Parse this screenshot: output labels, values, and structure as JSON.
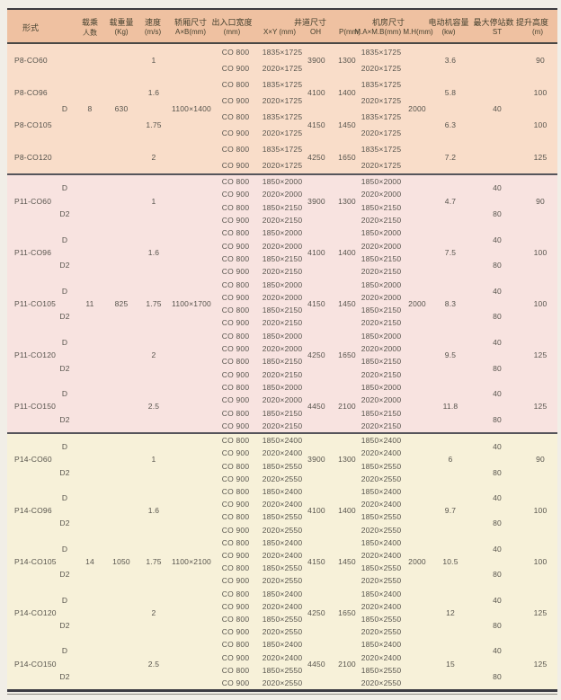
{
  "colors": {
    "header_bg": "#efc1a1",
    "section_P8_bg": "#f9ddc9",
    "section_P11_bg": "#f8e3e0",
    "section_P14_bg": "#f7f1d9",
    "rule": "#4a4845",
    "text": "#57544d"
  },
  "header": {
    "col_model": "形式",
    "col_persons_1": "载乘",
    "col_persons_2": "人数",
    "col_weight_1": "载重量",
    "col_weight_2": "(Kg)",
    "col_speed_1": "速度",
    "col_speed_2": "(m/s)",
    "col_cab_1": "轿厢尺寸",
    "col_cab_2": "A×B(mm)",
    "col_door_1": "出入口宽度",
    "col_door_2": "(mm)",
    "grp_shaft": "井道尺寸",
    "col_xy": "X×Y (mm)",
    "col_oh": "OH",
    "col_p": "P(mm)",
    "grp_machine": "机房尺寸",
    "col_mab_mh": "M.A×M.B(mm) M.H(mm)",
    "col_motor_1": "电动机容量",
    "col_motor_2": "(kw)",
    "col_st_1": "最大停站数",
    "col_st_2": "ST",
    "col_height_1": "提升高度",
    "col_height_2": "(m)"
  },
  "sections": [
    {
      "name": "P8",
      "bg_key": "section_P8_bg",
      "persons": "8",
      "weight": "630",
      "cab_size": "1100×1400",
      "machine_height": "2000",
      "shared_variant": "D",
      "shared_stops": "40",
      "models": [
        {
          "name": "P8-CO60",
          "speed": "1",
          "oh": "3900",
          "pit": "1300",
          "motor_kw": "3.6",
          "travel_m": "90",
          "variants": [
            {
              "label": "",
              "stops": "",
              "rows": [
                {
                  "door": "CO 800",
                  "shaft": "1835×1725",
                  "machine": "1835×1725"
                },
                {
                  "door": "CO 900",
                  "shaft": "2020×1725",
                  "machine": "2020×1725"
                }
              ]
            }
          ]
        },
        {
          "name": "P8-CO96",
          "speed": "1.6",
          "oh": "4100",
          "pit": "1400",
          "motor_kw": "5.8",
          "travel_m": "100",
          "variants": [
            {
              "label": "",
              "stops": "",
              "rows": [
                {
                  "door": "CO 800",
                  "shaft": "1835×1725",
                  "machine": "1835×1725"
                },
                {
                  "door": "CO 900",
                  "shaft": "2020×1725",
                  "machine": "2020×1725"
                }
              ]
            }
          ]
        },
        {
          "name": "P8-CO105",
          "speed": "1.75",
          "oh": "4150",
          "pit": "1450",
          "motor_kw": "6.3",
          "travel_m": "100",
          "variants": [
            {
              "label": "",
              "stops": "",
              "rows": [
                {
                  "door": "CO 800",
                  "shaft": "1835×1725",
                  "machine": "1835×1725"
                },
                {
                  "door": "CO 900",
                  "shaft": "2020×1725",
                  "machine": "2020×1725"
                }
              ]
            }
          ]
        },
        {
          "name": "P8-CO120",
          "speed": "2",
          "oh": "4250",
          "pit": "1650",
          "motor_kw": "7.2",
          "travel_m": "125",
          "variants": [
            {
              "label": "",
              "stops": "",
              "rows": [
                {
                  "door": "CO 800",
                  "shaft": "1835×1725",
                  "machine": "1835×1725"
                },
                {
                  "door": "CO 900",
                  "shaft": "2020×1725",
                  "machine": "2020×1725"
                }
              ]
            }
          ]
        }
      ]
    },
    {
      "name": "P11",
      "bg_key": "section_P11_bg",
      "persons": "11",
      "weight": "825",
      "cab_size": "1100×1700",
      "machine_height": "2000",
      "shared_variant": "",
      "shared_stops": "",
      "models": [
        {
          "name": "P11-CO60",
          "speed": "1",
          "oh": "3900",
          "pit": "1300",
          "motor_kw": "4.7",
          "travel_m": "90",
          "variants": [
            {
              "label": "D",
              "stops": "40",
              "rows": [
                {
                  "door": "CO 800",
                  "shaft": "1850×2000",
                  "machine": "1850×2000"
                },
                {
                  "door": "CO 900",
                  "shaft": "2020×2000",
                  "machine": "2020×2000"
                }
              ]
            },
            {
              "label": "D2",
              "stops": "80",
              "rows": [
                {
                  "door": "CO 800",
                  "shaft": "1850×2150",
                  "machine": "1850×2150"
                },
                {
                  "door": "CO 900",
                  "shaft": "2020×2150",
                  "machine": "2020×2150"
                }
              ]
            }
          ]
        },
        {
          "name": "P11-CO96",
          "speed": "1.6",
          "oh": "4100",
          "pit": "1400",
          "motor_kw": "7.5",
          "travel_m": "100",
          "variants": [
            {
              "label": "D",
              "stops": "40",
              "rows": [
                {
                  "door": "CO 800",
                  "shaft": "1850×2000",
                  "machine": "1850×2000"
                },
                {
                  "door": "CO 900",
                  "shaft": "2020×2000",
                  "machine": "2020×2000"
                }
              ]
            },
            {
              "label": "D2",
              "stops": "80",
              "rows": [
                {
                  "door": "CO 800",
                  "shaft": "1850×2150",
                  "machine": "1850×2150"
                },
                {
                  "door": "CO 900",
                  "shaft": "2020×2150",
                  "machine": "2020×2150"
                }
              ]
            }
          ]
        },
        {
          "name": "P11-CO105",
          "speed": "1.75",
          "oh": "4150",
          "pit": "1450",
          "motor_kw": "8.3",
          "travel_m": "100",
          "variants": [
            {
              "label": "D",
              "stops": "40",
              "rows": [
                {
                  "door": "CO 800",
                  "shaft": "1850×2000",
                  "machine": "1850×2000"
                },
                {
                  "door": "CO 900",
                  "shaft": "2020×2000",
                  "machine": "2020×2000"
                }
              ]
            },
            {
              "label": "D2",
              "stops": "80",
              "rows": [
                {
                  "door": "CO 800",
                  "shaft": "1850×2150",
                  "machine": "1850×2150"
                },
                {
                  "door": "CO 900",
                  "shaft": "2020×2150",
                  "machine": "2020×2150"
                }
              ]
            }
          ]
        },
        {
          "name": "P11-CO120",
          "speed": "2",
          "oh": "4250",
          "pit": "1650",
          "motor_kw": "9.5",
          "travel_m": "125",
          "variants": [
            {
              "label": "D",
              "stops": "40",
              "rows": [
                {
                  "door": "CO 800",
                  "shaft": "1850×2000",
                  "machine": "1850×2000"
                },
                {
                  "door": "CO 900",
                  "shaft": "2020×2000",
                  "machine": "2020×2000"
                }
              ]
            },
            {
              "label": "D2",
              "stops": "80",
              "rows": [
                {
                  "door": "CO 800",
                  "shaft": "1850×2150",
                  "machine": "1850×2150"
                },
                {
                  "door": "CO 900",
                  "shaft": "2020×2150",
                  "machine": "2020×2150"
                }
              ]
            }
          ]
        },
        {
          "name": "P11-CO150",
          "speed": "2.5",
          "oh": "4450",
          "pit": "2100",
          "motor_kw": "11.8",
          "travel_m": "125",
          "variants": [
            {
              "label": "D",
              "stops": "40",
              "rows": [
                {
                  "door": "CO 800",
                  "shaft": "1850×2000",
                  "machine": "1850×2000"
                },
                {
                  "door": "CO 900",
                  "shaft": "2020×2000",
                  "machine": "2020×2000"
                }
              ]
            },
            {
              "label": "D2",
              "stops": "80",
              "rows": [
                {
                  "door": "CO 800",
                  "shaft": "1850×2150",
                  "machine": "1850×2150"
                },
                {
                  "door": "CO 900",
                  "shaft": "2020×2150",
                  "machine": "2020×2150"
                }
              ]
            }
          ]
        }
      ]
    },
    {
      "name": "P14",
      "bg_key": "section_P14_bg",
      "persons": "14",
      "weight": "1050",
      "cab_size": "1100×2100",
      "machine_height": "2000",
      "shared_variant": "",
      "shared_stops": "",
      "models": [
        {
          "name": "P14-CO60",
          "speed": "1",
          "oh": "3900",
          "pit": "1300",
          "motor_kw": "6",
          "travel_m": "90",
          "variants": [
            {
              "label": "D",
              "stops": "40",
              "rows": [
                {
                  "door": "CO 800",
                  "shaft": "1850×2400",
                  "machine": "1850×2400"
                },
                {
                  "door": "CO 900",
                  "shaft": "2020×2400",
                  "machine": "2020×2400"
                }
              ]
            },
            {
              "label": "D2",
              "stops": "80",
              "rows": [
                {
                  "door": "CO 800",
                  "shaft": "1850×2550",
                  "machine": "1850×2550"
                },
                {
                  "door": "CO 900",
                  "shaft": "2020×2550",
                  "machine": "2020×2550"
                }
              ]
            }
          ]
        },
        {
          "name": "P14-CO96",
          "speed": "1.6",
          "oh": "4100",
          "pit": "1400",
          "motor_kw": "9.7",
          "travel_m": "100",
          "variants": [
            {
              "label": "D",
              "stops": "40",
              "rows": [
                {
                  "door": "CO 800",
                  "shaft": "1850×2400",
                  "machine": "1850×2400"
                },
                {
                  "door": "CO 900",
                  "shaft": "2020×2400",
                  "machine": "2020×2400"
                }
              ]
            },
            {
              "label": "D2",
              "stops": "80",
              "rows": [
                {
                  "door": "CO 800",
                  "shaft": "1850×2550",
                  "machine": "1850×2550"
                },
                {
                  "door": "CO 900",
                  "shaft": "2020×2550",
                  "machine": "2020×2550"
                }
              ]
            }
          ]
        },
        {
          "name": "P14-CO105",
          "speed": "1.75",
          "oh": "4150",
          "pit": "1450",
          "motor_kw": "10.5",
          "travel_m": "100",
          "variants": [
            {
              "label": "D",
              "stops": "40",
              "rows": [
                {
                  "door": "CO 800",
                  "shaft": "1850×2400",
                  "machine": "1850×2400"
                },
                {
                  "door": "CO 900",
                  "shaft": "2020×2400",
                  "machine": "2020×2400"
                }
              ]
            },
            {
              "label": "D2",
              "stops": "80",
              "rows": [
                {
                  "door": "CO 800",
                  "shaft": "1850×2550",
                  "machine": "1850×2550"
                },
                {
                  "door": "CO 900",
                  "shaft": "2020×2550",
                  "machine": "2020×2550"
                }
              ]
            }
          ]
        },
        {
          "name": "P14-CO120",
          "speed": "2",
          "oh": "4250",
          "pit": "1650",
          "motor_kw": "12",
          "travel_m": "125",
          "variants": [
            {
              "label": "D",
              "stops": "40",
              "rows": [
                {
                  "door": "CO 800",
                  "shaft": "1850×2400",
                  "machine": "1850×2400"
                },
                {
                  "door": "CO 900",
                  "shaft": "2020×2400",
                  "machine": "2020×2400"
                }
              ]
            },
            {
              "label": "D2",
              "stops": "80",
              "rows": [
                {
                  "door": "CO 800",
                  "shaft": "1850×2550",
                  "machine": "1850×2550"
                },
                {
                  "door": "CO 900",
                  "shaft": "2020×2550",
                  "machine": "2020×2550"
                }
              ]
            }
          ]
        },
        {
          "name": "P14-CO150",
          "speed": "2.5",
          "oh": "4450",
          "pit": "2100",
          "motor_kw": "15",
          "travel_m": "125",
          "variants": [
            {
              "label": "D",
              "stops": "40",
              "rows": [
                {
                  "door": "CO 800",
                  "shaft": "1850×2400",
                  "machine": "1850×2400"
                },
                {
                  "door": "CO 900",
                  "shaft": "2020×2400",
                  "machine": "2020×2400"
                }
              ]
            },
            {
              "label": "D2",
              "stops": "80",
              "rows": [
                {
                  "door": "CO 800",
                  "shaft": "1850×2550",
                  "machine": "1850×2550"
                },
                {
                  "door": "CO 900",
                  "shaft": "2020×2550",
                  "machine": "2020×2550"
                }
              ]
            }
          ]
        }
      ]
    }
  ]
}
